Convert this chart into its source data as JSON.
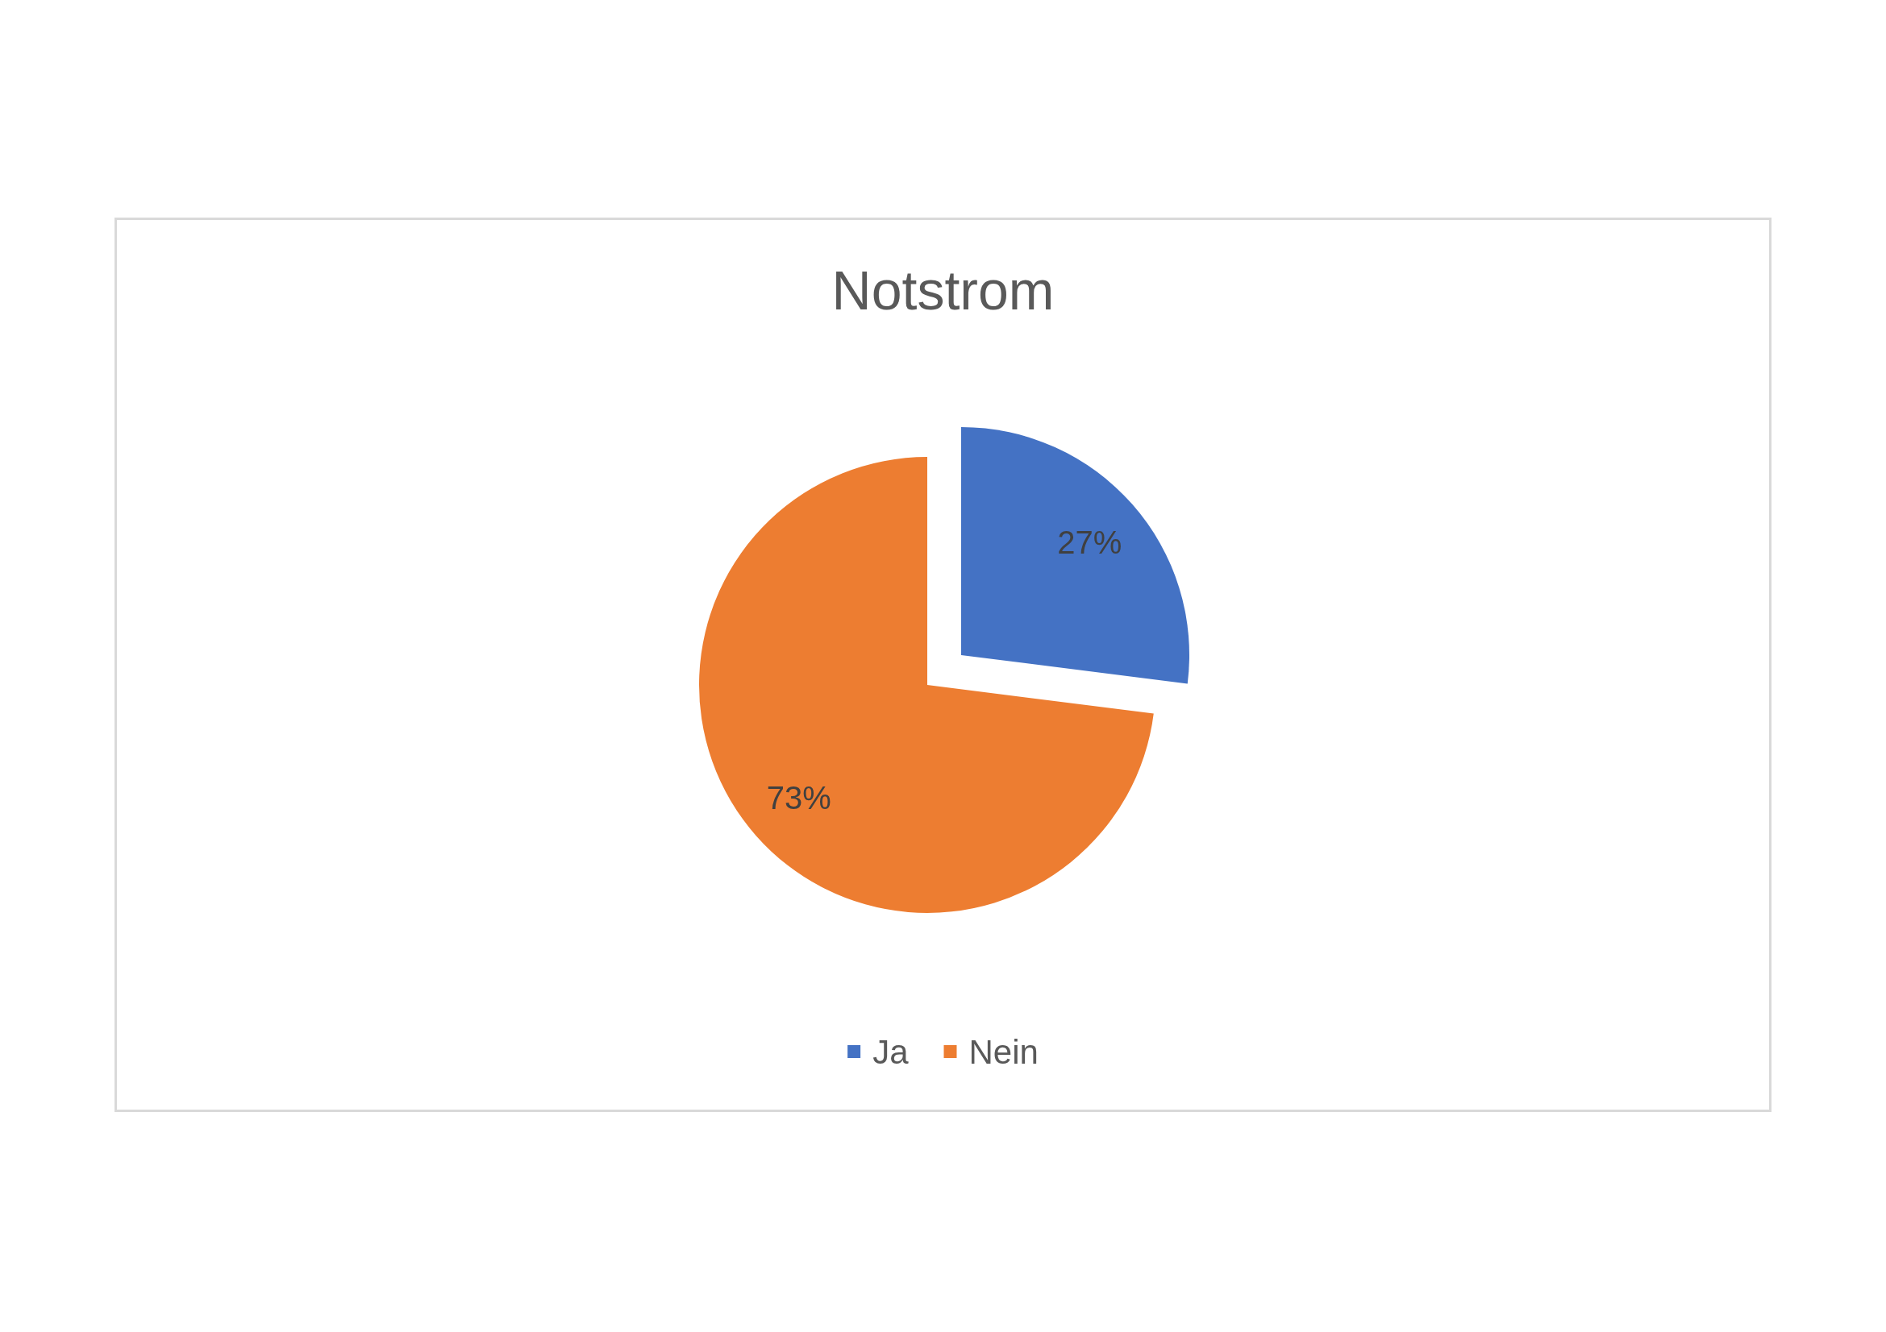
{
  "chart_data": {
    "type": "pie",
    "title": "Notstrom",
    "categories": [
      "Ja",
      "Nein"
    ],
    "values": [
      27,
      73
    ],
    "colors": [
      "#4472c4",
      "#ed7d31"
    ],
    "value_labels": [
      "27%",
      "73%"
    ],
    "legend": "bottom"
  }
}
